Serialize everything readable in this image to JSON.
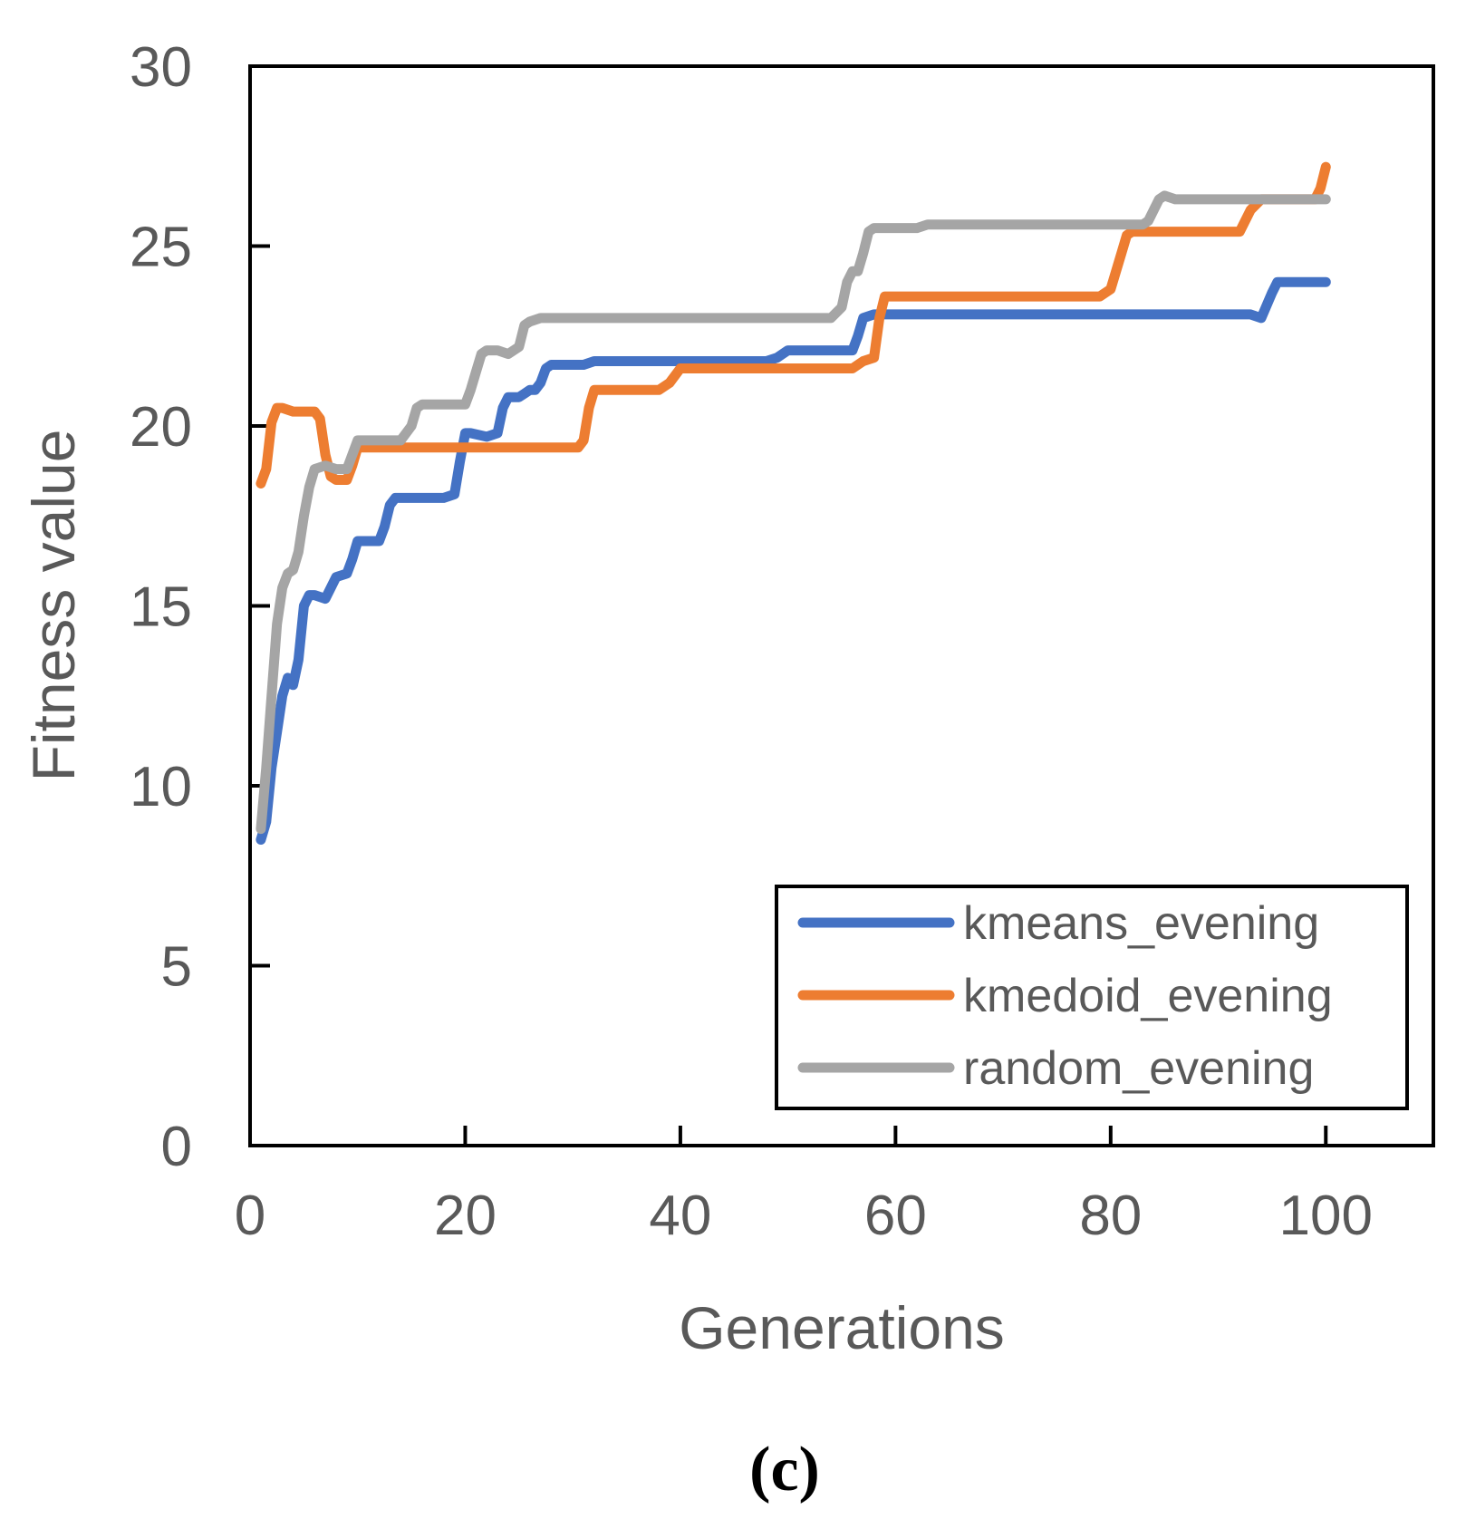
{
  "chart_data": {
    "type": "line",
    "title": "",
    "xlabel": "Generations",
    "ylabel": "Fitness value",
    "xlim": [
      0,
      110
    ],
    "ylim": [
      0,
      30
    ],
    "x_ticks": [
      0,
      20,
      40,
      60,
      80,
      100
    ],
    "y_ticks": [
      0,
      5,
      10,
      15,
      20,
      25,
      30
    ],
    "grid": false,
    "legend_position": "bottom-right",
    "caption": "(c)",
    "series": [
      {
        "name": "kmeans_evening",
        "color": "#4472C4",
        "points": [
          [
            1,
            8.5
          ],
          [
            1.5,
            9
          ],
          [
            2,
            10.5
          ],
          [
            2.5,
            11.5
          ],
          [
            3,
            12.5
          ],
          [
            3.5,
            13
          ],
          [
            4,
            12.8
          ],
          [
            4.5,
            13.5
          ],
          [
            5,
            15
          ],
          [
            5.5,
            15.3
          ],
          [
            6,
            15.3
          ],
          [
            7,
            15.2
          ],
          [
            8,
            15.8
          ],
          [
            9,
            15.9
          ],
          [
            9.5,
            16.3
          ],
          [
            10,
            16.8
          ],
          [
            11,
            16.8
          ],
          [
            12,
            16.8
          ],
          [
            12.5,
            17.2
          ],
          [
            13,
            17.8
          ],
          [
            13.5,
            18
          ],
          [
            15,
            18
          ],
          [
            17,
            18
          ],
          [
            18,
            18
          ],
          [
            19,
            18.1
          ],
          [
            19.5,
            19
          ],
          [
            20,
            19.8
          ],
          [
            20.5,
            19.8
          ],
          [
            22,
            19.7
          ],
          [
            23,
            19.8
          ],
          [
            23.5,
            20.5
          ],
          [
            24,
            20.8
          ],
          [
            25,
            20.8
          ],
          [
            25.5,
            20.9
          ],
          [
            26,
            21
          ],
          [
            26.5,
            21
          ],
          [
            27,
            21.2
          ],
          [
            27.5,
            21.6
          ],
          [
            28,
            21.7
          ],
          [
            30,
            21.7
          ],
          [
            31,
            21.7
          ],
          [
            32,
            21.8
          ],
          [
            35,
            21.8
          ],
          [
            40,
            21.8
          ],
          [
            45,
            21.8
          ],
          [
            48,
            21.8
          ],
          [
            49,
            21.9
          ],
          [
            50,
            22.1
          ],
          [
            52,
            22.1
          ],
          [
            54,
            22.1
          ],
          [
            55,
            22.1
          ],
          [
            56,
            22.1
          ],
          [
            56.5,
            22.5
          ],
          [
            57,
            23
          ],
          [
            58,
            23.1
          ],
          [
            60,
            23.1
          ],
          [
            70,
            23.1
          ],
          [
            80,
            23.1
          ],
          [
            90,
            23.1
          ],
          [
            93,
            23.1
          ],
          [
            94,
            23
          ],
          [
            95,
            23.7
          ],
          [
            95.5,
            24
          ],
          [
            96,
            24
          ],
          [
            98,
            24
          ],
          [
            100,
            24
          ]
        ]
      },
      {
        "name": "kmedoid_evening",
        "color": "#ED7D31",
        "points": [
          [
            1,
            18.4
          ],
          [
            1.5,
            18.8
          ],
          [
            2,
            20.1
          ],
          [
            2.5,
            20.5
          ],
          [
            3,
            20.5
          ],
          [
            4,
            20.4
          ],
          [
            5,
            20.4
          ],
          [
            6,
            20.4
          ],
          [
            6.5,
            20.2
          ],
          [
            7,
            19.2
          ],
          [
            7.5,
            18.6
          ],
          [
            8,
            18.5
          ],
          [
            9,
            18.5
          ],
          [
            9.5,
            18.9
          ],
          [
            10,
            19.4
          ],
          [
            12,
            19.4
          ],
          [
            15,
            19.4
          ],
          [
            20,
            19.4
          ],
          [
            25,
            19.4
          ],
          [
            30,
            19.4
          ],
          [
            30.5,
            19.4
          ],
          [
            31,
            19.6
          ],
          [
            31.5,
            20.5
          ],
          [
            32,
            21
          ],
          [
            33,
            21
          ],
          [
            35,
            21
          ],
          [
            38,
            21
          ],
          [
            39,
            21.2
          ],
          [
            40,
            21.6
          ],
          [
            41,
            21.6
          ],
          [
            45,
            21.6
          ],
          [
            50,
            21.6
          ],
          [
            55,
            21.6
          ],
          [
            56,
            21.6
          ],
          [
            57,
            21.8
          ],
          [
            58,
            21.9
          ],
          [
            58.5,
            23
          ],
          [
            59,
            23.6
          ],
          [
            60,
            23.6
          ],
          [
            65,
            23.6
          ],
          [
            70,
            23.6
          ],
          [
            75,
            23.6
          ],
          [
            79,
            23.6
          ],
          [
            80,
            23.8
          ],
          [
            81,
            24.8
          ],
          [
            81.5,
            25.3
          ],
          [
            82,
            25.4
          ],
          [
            85,
            25.4
          ],
          [
            90,
            25.4
          ],
          [
            92,
            25.4
          ],
          [
            93,
            26
          ],
          [
            94,
            26.3
          ],
          [
            96,
            26.3
          ],
          [
            98,
            26.3
          ],
          [
            99,
            26.3
          ],
          [
            99.5,
            26.6
          ],
          [
            100,
            27.2
          ]
        ]
      },
      {
        "name": "random_evening",
        "color": "#A5A5A5",
        "points": [
          [
            1,
            8.8
          ],
          [
            1.5,
            10.5
          ],
          [
            2,
            12.5
          ],
          [
            2.5,
            14.5
          ],
          [
            3,
            15.5
          ],
          [
            3.5,
            15.9
          ],
          [
            4,
            16
          ],
          [
            4.5,
            16.5
          ],
          [
            5,
            17.5
          ],
          [
            5.5,
            18.3
          ],
          [
            6,
            18.8
          ],
          [
            7,
            18.9
          ],
          [
            8,
            18.8
          ],
          [
            9,
            18.8
          ],
          [
            9.5,
            19.2
          ],
          [
            10,
            19.6
          ],
          [
            11,
            19.6
          ],
          [
            13,
            19.6
          ],
          [
            14,
            19.6
          ],
          [
            15,
            20
          ],
          [
            15.5,
            20.5
          ],
          [
            16,
            20.6
          ],
          [
            18,
            20.6
          ],
          [
            20,
            20.6
          ],
          [
            20.5,
            21
          ],
          [
            21,
            21.5
          ],
          [
            21.5,
            22
          ],
          [
            22,
            22.1
          ],
          [
            23,
            22.1
          ],
          [
            24,
            22
          ],
          [
            25,
            22.2
          ],
          [
            25.5,
            22.8
          ],
          [
            26,
            22.9
          ],
          [
            27,
            23
          ],
          [
            30,
            23
          ],
          [
            40,
            23
          ],
          [
            50,
            23
          ],
          [
            54,
            23
          ],
          [
            55,
            23.3
          ],
          [
            55.5,
            24
          ],
          [
            56,
            24.3
          ],
          [
            56.5,
            24.3
          ],
          [
            57,
            24.8
          ],
          [
            57.5,
            25.4
          ],
          [
            58,
            25.5
          ],
          [
            60,
            25.5
          ],
          [
            62,
            25.5
          ],
          [
            63,
            25.6
          ],
          [
            65,
            25.6
          ],
          [
            70,
            25.6
          ],
          [
            75,
            25.6
          ],
          [
            80,
            25.6
          ],
          [
            83,
            25.6
          ],
          [
            83.5,
            25.7
          ],
          [
            84,
            26
          ],
          [
            84.5,
            26.3
          ],
          [
            85,
            26.4
          ],
          [
            86,
            26.3
          ],
          [
            90,
            26.3
          ],
          [
            95,
            26.3
          ],
          [
            100,
            26.3
          ]
        ]
      }
    ]
  }
}
